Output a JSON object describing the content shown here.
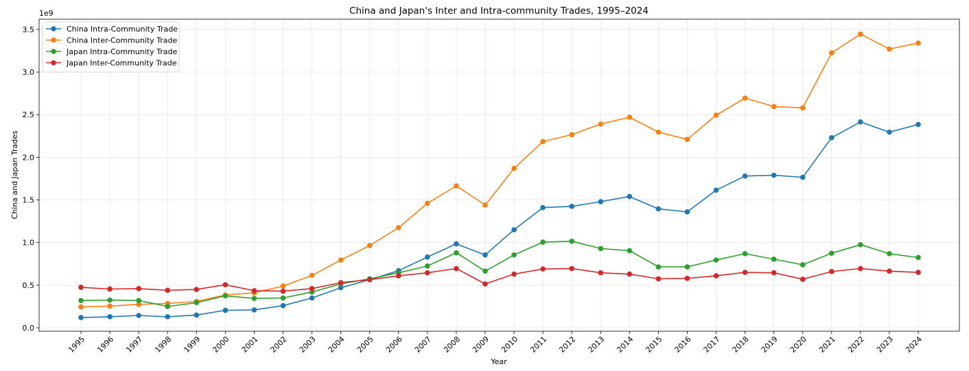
{
  "chart_data": {
    "type": "line",
    "title": "China and Japan's Inter and Intra-community Trades, 1995–2024",
    "xlabel": "Year",
    "ylabel": "China and Japan Trades",
    "y_offset_label": "1e9",
    "ylim": [
      -0.04,
      3.62
    ],
    "yticks": [
      0.0,
      0.5,
      1.0,
      1.5,
      2.0,
      2.5,
      3.0,
      3.5
    ],
    "ytick_labels": [
      "0.0",
      "0.5",
      "1.0",
      "1.5",
      "2.0",
      "2.5",
      "3.0",
      "3.5"
    ],
    "grid": true,
    "legend_position": "top-left",
    "x": [
      "1995",
      "1996",
      "1997",
      "1998",
      "1999",
      "2000",
      "2001",
      "2002",
      "2003",
      "2004",
      "2005",
      "2006",
      "2007",
      "2008",
      "2009",
      "2010",
      "2011",
      "2012",
      "2013",
      "2014",
      "2015",
      "2016",
      "2017",
      "2018",
      "2019",
      "2020",
      "2021",
      "2022",
      "2023",
      "2024"
    ],
    "series": [
      {
        "name": "China Intra-Community Trade",
        "color": "#1f77b4",
        "values": [
          0.12,
          0.13,
          0.145,
          0.13,
          0.15,
          0.205,
          0.21,
          0.26,
          0.35,
          0.47,
          0.565,
          0.67,
          0.83,
          0.985,
          0.855,
          1.15,
          1.41,
          1.425,
          1.48,
          1.54,
          1.395,
          1.36,
          1.615,
          1.78,
          1.79,
          1.765,
          2.23,
          2.415,
          2.295,
          2.385
        ]
      },
      {
        "name": "China Inter-Community Trade",
        "color": "#ff7f0e",
        "values": [
          0.245,
          0.255,
          0.275,
          0.285,
          0.31,
          0.385,
          0.41,
          0.49,
          0.615,
          0.795,
          0.965,
          1.175,
          1.46,
          1.665,
          1.44,
          1.87,
          2.185,
          2.265,
          2.39,
          2.47,
          2.295,
          2.21,
          2.495,
          2.695,
          2.595,
          2.58,
          3.225,
          3.445,
          3.27,
          3.34
        ]
      },
      {
        "name": "Japan Intra-Community Trade",
        "color": "#2ca02c",
        "values": [
          0.32,
          0.325,
          0.32,
          0.25,
          0.295,
          0.375,
          0.345,
          0.35,
          0.42,
          0.515,
          0.575,
          0.645,
          0.725,
          0.88,
          0.665,
          0.855,
          1.005,
          1.015,
          0.93,
          0.905,
          0.715,
          0.715,
          0.795,
          0.87,
          0.805,
          0.74,
          0.875,
          0.975,
          0.87,
          0.825
        ]
      },
      {
        "name": "Japan Inter-Community Trade",
        "color": "#d62728",
        "values": [
          0.475,
          0.455,
          0.46,
          0.44,
          0.45,
          0.505,
          0.435,
          0.43,
          0.46,
          0.53,
          0.565,
          0.61,
          0.645,
          0.695,
          0.515,
          0.63,
          0.69,
          0.695,
          0.645,
          0.63,
          0.575,
          0.58,
          0.61,
          0.65,
          0.645,
          0.57,
          0.66,
          0.695,
          0.665,
          0.65
        ]
      }
    ]
  }
}
